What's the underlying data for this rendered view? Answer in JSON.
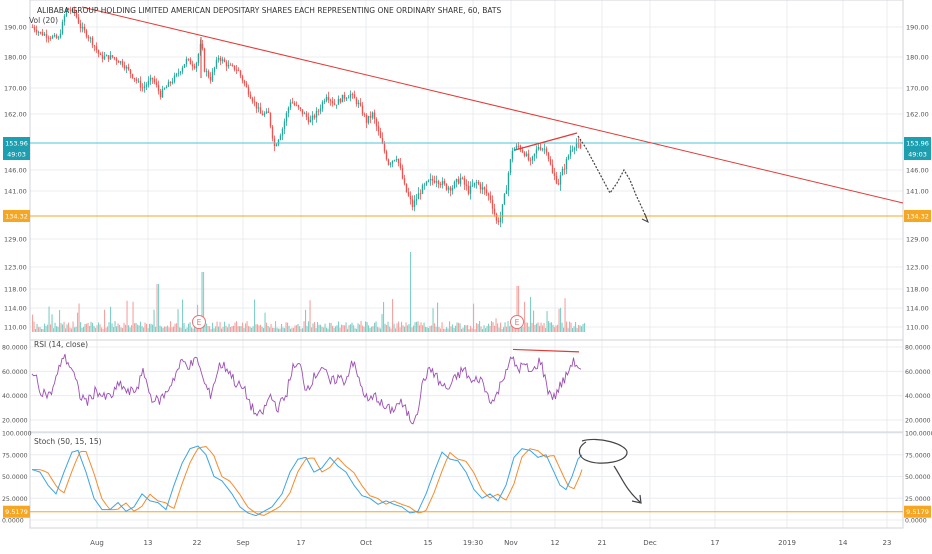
{
  "title": "ALIBABA GROUP HOLDING LIMITED AMERICAN DEPOSITARY SHARES EACH REPRESENTING ONE ORDINARY SHARE, 60, BATS",
  "colors": {
    "up": "#26a69a",
    "down": "#ef5350",
    "trend": "#e53935",
    "drawing": "#444444",
    "cyan_line": "#4dc4d6",
    "orange_line": "#f5a623",
    "rsi": "#9c4fb5",
    "stoch_k": "#3ba4e6",
    "stoch_d": "#f58c2a",
    "grid": "#e9ecf0",
    "text": "#555555"
  },
  "main_pane": {
    "indicator_label": "Vol (20)",
    "price_axis": [
      "190.00",
      "180.00",
      "170.00",
      "162.00",
      "153.96",
      "146.00",
      "141.00",
      "134.32",
      "129.00",
      "123.00",
      "118.00",
      "114.00",
      "110.00"
    ],
    "badge_cyan": "153.96",
    "badge_cyan_sub": "49:03",
    "badge_orange": "134.32",
    "earnings_marker": "E"
  },
  "rsi_pane": {
    "label": "RSI (14, close)",
    "axis": [
      "80.0000",
      "60.0000",
      "40.0000",
      "20.0000"
    ]
  },
  "stoch_pane": {
    "label": "Stoch (50, 15, 15)",
    "axis": [
      "100.0000",
      "75.0000",
      "50.0000",
      "25.0000",
      "0.0000"
    ],
    "badge": "9.5179"
  },
  "time_axis": [
    "Aug",
    "13",
    "22",
    "Sep",
    "17",
    "Oct",
    "15",
    "19:30",
    "Nov",
    "12",
    "21",
    "Dec",
    "17",
    "2019",
    "14",
    "23"
  ],
  "chart_data": {
    "type": "line",
    "price": {
      "x_dates": [
        "Jul 18",
        "Jul 25",
        "Aug 1",
        "Aug 8",
        "Aug 15",
        "Aug 22",
        "Aug 29",
        "Sep 5",
        "Sep 12",
        "Sep 19",
        "Sep 26",
        "Oct 3",
        "Oct 10",
        "Oct 17",
        "Oct 24",
        "Oct 31",
        "Nov 7",
        "Nov 14",
        "Nov 16"
      ],
      "close": [
        189,
        192,
        186,
        178,
        168,
        176,
        180,
        166,
        158,
        166,
        169,
        164,
        150,
        141,
        145,
        139,
        148,
        146,
        152
      ]
    },
    "hline_cyan": 153.96,
    "hline_orange": 134.32,
    "rsi_range": [
      0,
      100
    ],
    "stoch_range": [
      0,
      100
    ],
    "stoch_hline": 9.5179
  }
}
